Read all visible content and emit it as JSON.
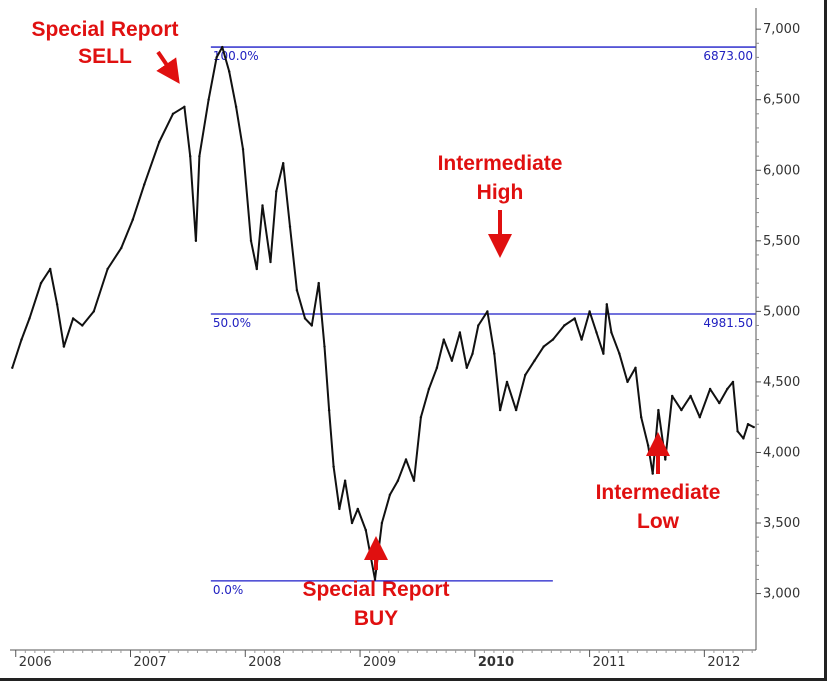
{
  "chart_data": {
    "type": "line",
    "title": "",
    "xlabel": "",
    "ylabel": "",
    "x_tick_labels": [
      {
        "year": 2006,
        "label": "2006",
        "bold": false
      },
      {
        "year": 2007,
        "label": "2007",
        "bold": false
      },
      {
        "year": 2008,
        "label": "2008",
        "bold": false
      },
      {
        "year": 2009,
        "label": "2009",
        "bold": false
      },
      {
        "year": 2010,
        "label": "2010",
        "bold": true
      },
      {
        "year": 2011,
        "label": "2011",
        "bold": false
      },
      {
        "year": 2012,
        "label": "2012",
        "bold": false
      }
    ],
    "y_ticks": [
      3000,
      3500,
      4000,
      4500,
      5000,
      5500,
      6000,
      6500,
      7000
    ],
    "y_tick_labels": [
      "3,000",
      "3,500",
      "4,000",
      "4,500",
      "5,000",
      "5,500",
      "6,000",
      "6,500",
      "7,000"
    ],
    "xlim": [
      2005.95,
      2012.45
    ],
    "ylim": [
      2600,
      7150
    ],
    "grid": false,
    "series": [
      {
        "color": "#111111",
        "points": [
          [
            2005.97,
            4600
          ],
          [
            2006.05,
            4800
          ],
          [
            2006.12,
            4950
          ],
          [
            2006.22,
            5200
          ],
          [
            2006.3,
            5300
          ],
          [
            2006.36,
            5050
          ],
          [
            2006.42,
            4750
          ],
          [
            2006.5,
            4950
          ],
          [
            2006.58,
            4900
          ],
          [
            2006.68,
            5000
          ],
          [
            2006.8,
            5300
          ],
          [
            2006.92,
            5450
          ],
          [
            2007.02,
            5650
          ],
          [
            2007.12,
            5900
          ],
          [
            2007.25,
            6200
          ],
          [
            2007.37,
            6400
          ],
          [
            2007.47,
            6450
          ],
          [
            2007.52,
            6100
          ],
          [
            2007.57,
            5500
          ],
          [
            2007.6,
            6100
          ],
          [
            2007.68,
            6500
          ],
          [
            2007.75,
            6800
          ],
          [
            2007.8,
            6873
          ],
          [
            2007.86,
            6700
          ],
          [
            2007.92,
            6450
          ],
          [
            2007.98,
            6150
          ],
          [
            2008.05,
            5500
          ],
          [
            2008.1,
            5300
          ],
          [
            2008.15,
            5750
          ],
          [
            2008.22,
            5350
          ],
          [
            2008.27,
            5850
          ],
          [
            2008.33,
            6050
          ],
          [
            2008.39,
            5600
          ],
          [
            2008.45,
            5150
          ],
          [
            2008.52,
            4950
          ],
          [
            2008.58,
            4900
          ],
          [
            2008.64,
            5200
          ],
          [
            2008.69,
            4750
          ],
          [
            2008.73,
            4300
          ],
          [
            2008.77,
            3900
          ],
          [
            2008.82,
            3600
          ],
          [
            2008.87,
            3800
          ],
          [
            2008.93,
            3500
          ],
          [
            2008.98,
            3600
          ],
          [
            2009.05,
            3450
          ],
          [
            2009.13,
            3100
          ],
          [
            2009.19,
            3500
          ],
          [
            2009.26,
            3700
          ],
          [
            2009.33,
            3800
          ],
          [
            2009.4,
            3950
          ],
          [
            2009.47,
            3800
          ],
          [
            2009.53,
            4250
          ],
          [
            2009.6,
            4450
          ],
          [
            2009.67,
            4600
          ],
          [
            2009.73,
            4800
          ],
          [
            2009.8,
            4650
          ],
          [
            2009.87,
            4850
          ],
          [
            2009.93,
            4600
          ],
          [
            2009.98,
            4700
          ],
          [
            2010.03,
            4900
          ],
          [
            2010.11,
            5000
          ],
          [
            2010.17,
            4700
          ],
          [
            2010.22,
            4300
          ],
          [
            2010.28,
            4500
          ],
          [
            2010.36,
            4300
          ],
          [
            2010.44,
            4550
          ],
          [
            2010.52,
            4650
          ],
          [
            2010.6,
            4750
          ],
          [
            2010.68,
            4800
          ],
          [
            2010.78,
            4900
          ],
          [
            2010.87,
            4950
          ],
          [
            2010.93,
            4800
          ],
          [
            2011.0,
            5000
          ],
          [
            2011.06,
            4850
          ],
          [
            2011.12,
            4700
          ],
          [
            2011.15,
            5050
          ],
          [
            2011.19,
            4850
          ],
          [
            2011.26,
            4700
          ],
          [
            2011.33,
            4500
          ],
          [
            2011.4,
            4600
          ],
          [
            2011.45,
            4250
          ],
          [
            2011.51,
            4050
          ],
          [
            2011.55,
            3850
          ],
          [
            2011.6,
            4300
          ],
          [
            2011.66,
            3950
          ],
          [
            2011.72,
            4400
          ],
          [
            2011.8,
            4300
          ],
          [
            2011.88,
            4400
          ],
          [
            2011.96,
            4250
          ],
          [
            2012.05,
            4450
          ],
          [
            2012.13,
            4350
          ],
          [
            2012.2,
            4450
          ],
          [
            2012.25,
            4500
          ],
          [
            2012.29,
            4150
          ],
          [
            2012.34,
            4100
          ],
          [
            2012.38,
            4200
          ],
          [
            2012.43,
            4180
          ]
        ]
      }
    ],
    "fibonacci": {
      "color": "#1c1cc8",
      "x_start": 2007.7,
      "levels": [
        {
          "label": "100.0%",
          "price": 6873,
          "price_label": "6873.00",
          "x_end": 2012.45
        },
        {
          "label": "50.0%",
          "price": 4981.5,
          "price_label": "4981.50",
          "x_end": 2012.45
        },
        {
          "label": "0.0%",
          "price": 3090,
          "price_label": "",
          "x_end": 2010.68
        }
      ]
    },
    "annotations": [
      {
        "id": "special-report-sell",
        "lines": [
          "Special Report",
          "SELL"
        ],
        "color": "#e01010"
      },
      {
        "id": "intermediate-high",
        "lines": [
          "Intermediate",
          "High"
        ],
        "color": "#e01010"
      },
      {
        "id": "special-report-buy",
        "lines": [
          "Special Report",
          "BUY"
        ],
        "color": "#e01010"
      },
      {
        "id": "intermediate-low",
        "lines": [
          "Intermediate",
          "Low"
        ],
        "color": "#e01010"
      }
    ]
  }
}
